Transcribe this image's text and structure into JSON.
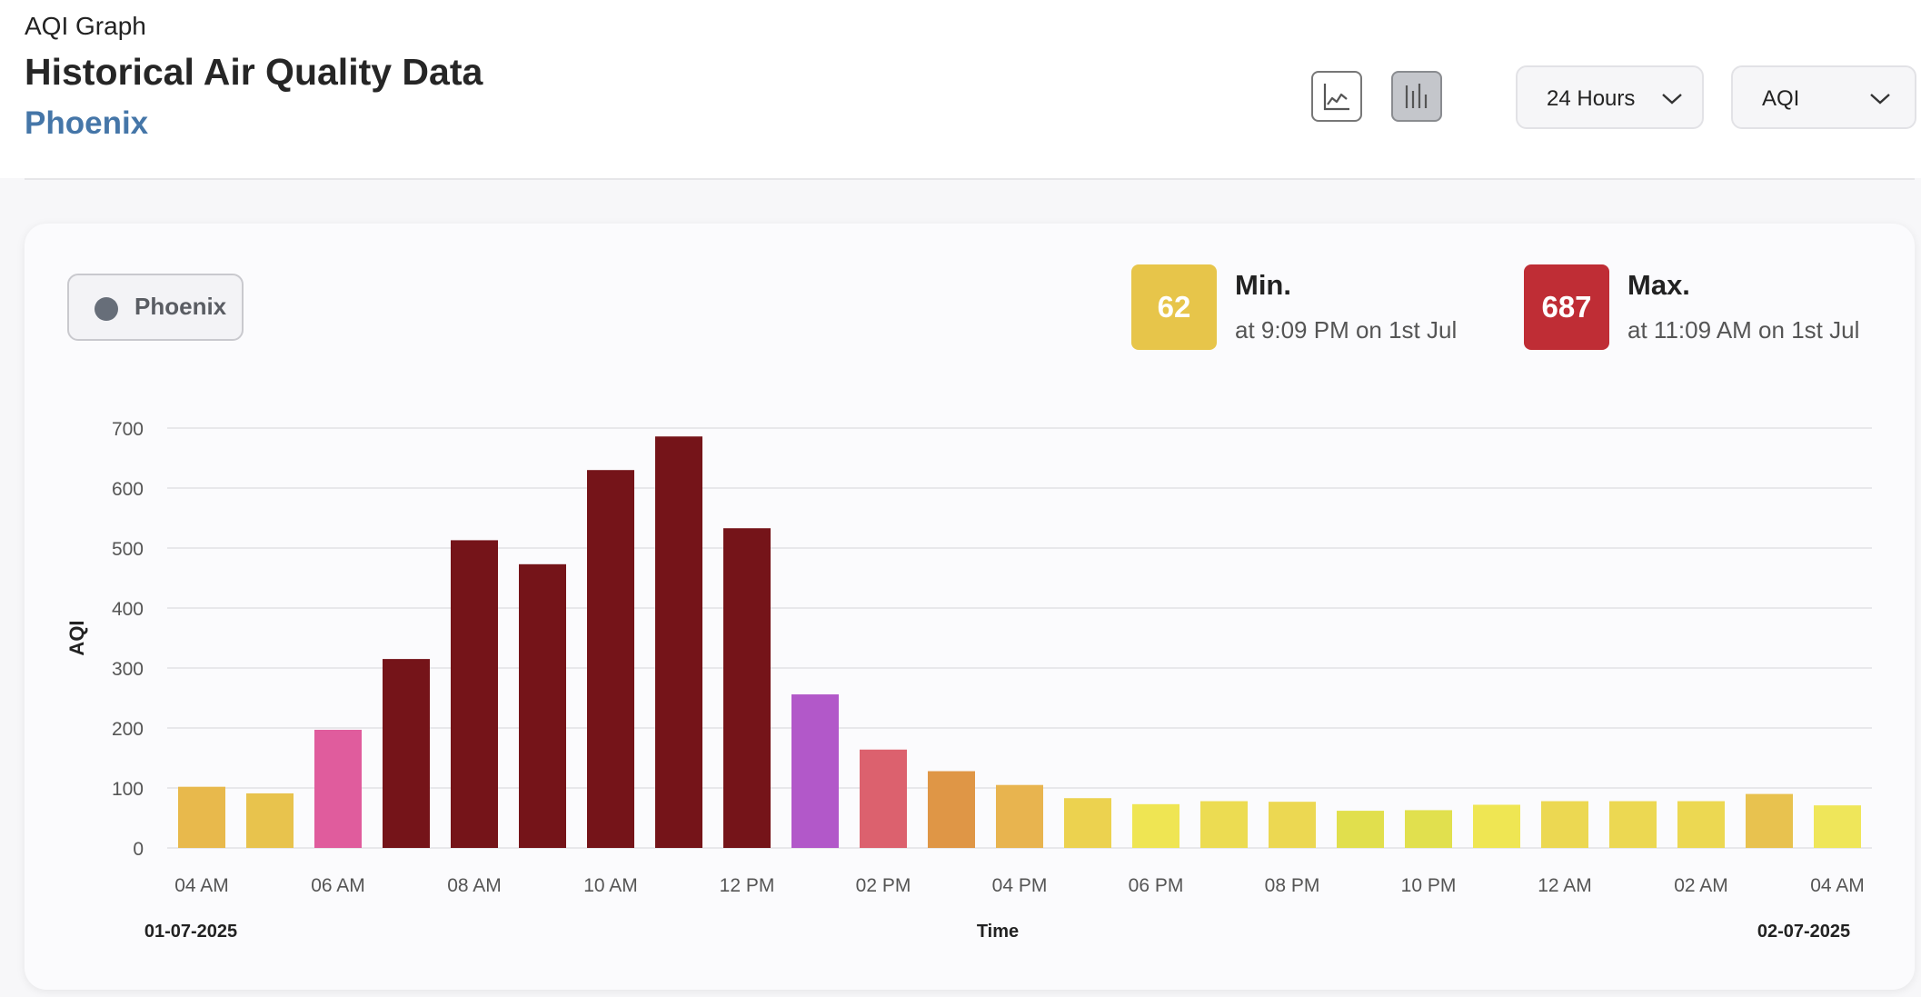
{
  "header": {
    "app_label": "AQI Graph",
    "page_title": "Historical Air Quality Data",
    "city": "Phoenix"
  },
  "controls": {
    "line_chart_icon": "line-chart-icon",
    "bar_chart_icon": "bar-chart-icon",
    "range_dropdown": "24 Hours",
    "metric_dropdown": "AQI"
  },
  "legend": {
    "label": "Phoenix",
    "dot_color": "#676e79"
  },
  "stats": {
    "min": {
      "value": "62",
      "label": "Min.",
      "detail": "at 9:09 PM on 1st Jul",
      "color": "#e7c54a"
    },
    "max": {
      "value": "687",
      "label": "Max.",
      "detail": "at 11:09 AM on 1st Jul",
      "color": "#bf2d35"
    }
  },
  "chart_data": {
    "type": "bar",
    "xlabel": "Time",
    "ylabel": "AQI",
    "ylim": [
      0,
      700
    ],
    "yticks": [
      0,
      100,
      200,
      300,
      400,
      500,
      600,
      700
    ],
    "grid": true,
    "xtick_labels": [
      "04 AM",
      "06 AM",
      "08 AM",
      "10 AM",
      "12 PM",
      "02 PM",
      "04 PM",
      "06 PM",
      "08 PM",
      "10 PM",
      "12 AM",
      "02 AM",
      "04 AM"
    ],
    "date_start": "01-07-2025",
    "date_end": "02-07-2025",
    "values": [
      102,
      91,
      197,
      315,
      513,
      473,
      630,
      686,
      533,
      256,
      164,
      128,
      105,
      83,
      73,
      78,
      77,
      62,
      63,
      72,
      78,
      78,
      78,
      90,
      71
    ],
    "colors": [
      "#e8b94c",
      "#e8c34d",
      "#e05c9d",
      "#751419",
      "#751419",
      "#751419",
      "#751419",
      "#751419",
      "#751419",
      "#b258c9",
      "#dc616e",
      "#df9646",
      "#e8b44f",
      "#ecd24f",
      "#efe553",
      "#ecdc52",
      "#ecd852",
      "#e1df4d",
      "#e1e04e",
      "#efe653",
      "#ecd852",
      "#ecd852",
      "#ecd852",
      "#e8c24f",
      "#efe65a"
    ]
  }
}
